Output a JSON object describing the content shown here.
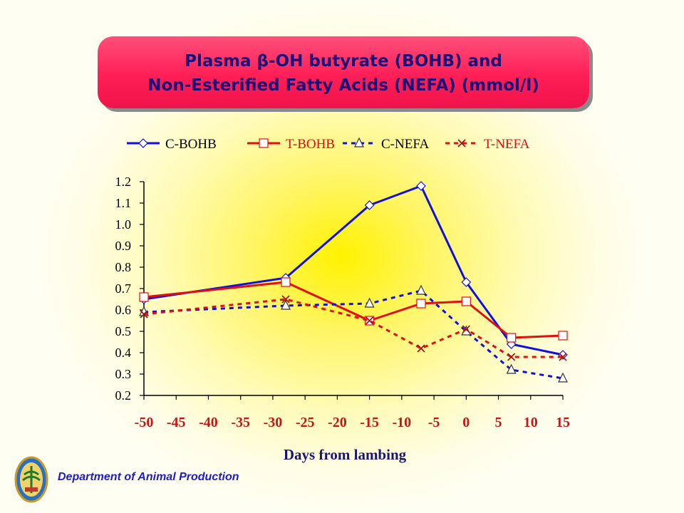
{
  "title": {
    "line1": "Plasma β-OH butyrate (BOHB) and",
    "line2": "Non-Esterified Fatty Acids (NEFA) (mmol/l)"
  },
  "footer": {
    "department": "Department of Animal Production"
  },
  "chart_data": {
    "type": "line",
    "title": "Plasma β-OH butyrate (BOHB) and Non-Esterified Fatty Acids (NEFA) (mmol/l)",
    "xlabel": "Days from lambing",
    "ylabel": "",
    "xlim": [
      -50,
      15
    ],
    "ylim": [
      0.2,
      1.2
    ],
    "xticks": [
      "-50",
      "-45",
      "-40",
      "-35",
      "-30",
      "-25",
      "-20",
      "-15",
      "-10",
      "-5",
      "0",
      "5",
      "10",
      "15"
    ],
    "yticks": [
      "1.2",
      "1.1",
      "1.0",
      "0.9",
      "0.8",
      "0.7",
      "0.6",
      "0.5",
      "0.4",
      "0.3",
      "0.2"
    ],
    "legend_position": "top",
    "grid": false,
    "x": [
      -50,
      -28,
      -15,
      -7,
      0,
      7,
      15
    ],
    "series": [
      {
        "name": "C-BOHB",
        "values": [
          0.65,
          0.75,
          1.09,
          1.18,
          0.73,
          0.44,
          0.39
        ],
        "color": "#1010e0",
        "dash": "solid",
        "marker": "diamond"
      },
      {
        "name": "T-BOHB",
        "values": [
          0.66,
          0.73,
          0.55,
          0.63,
          0.64,
          0.47,
          0.48
        ],
        "color": "#e01010",
        "dash": "solid",
        "marker": "square"
      },
      {
        "name": "C-NEFA",
        "values": [
          0.59,
          0.62,
          0.63,
          0.69,
          0.5,
          0.32,
          0.28
        ],
        "color": "#1010e0",
        "dash": "dashed",
        "marker": "triangle"
      },
      {
        "name": "T-NEFA",
        "values": [
          0.58,
          0.65,
          0.55,
          0.42,
          0.51,
          0.38,
          0.38
        ],
        "color": "#e01010",
        "dash": "dashed",
        "marker": "x"
      }
    ]
  }
}
